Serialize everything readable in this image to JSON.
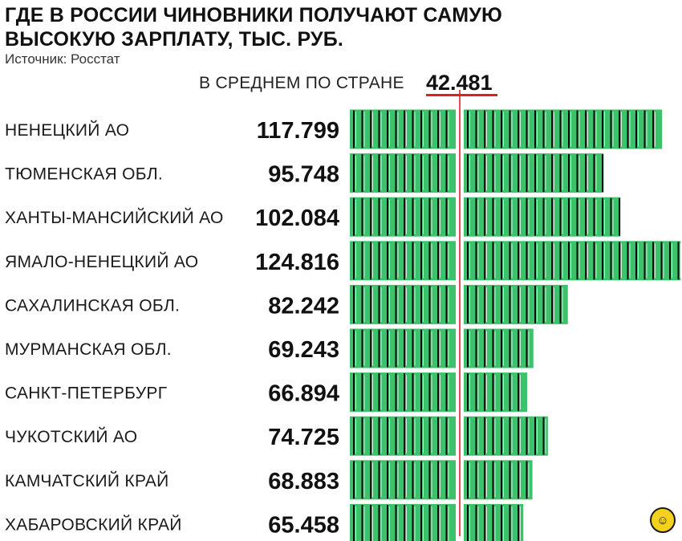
{
  "header": {
    "title": "ГДЕ В РОССИИ ЧИНОВНИКИ ПОЛУЧАЮТ САМУЮ ВЫСОКУЮ ЗАРПЛАТУ, ТЫС. РУБ.",
    "source": "Источник: Росстат"
  },
  "average": {
    "label": "В СРЕДНЕМ ПО СТРАНЕ",
    "value": "42.481"
  },
  "colors": {
    "bar": "#3cc26a",
    "bar_stripe": "#0a0a0a",
    "average_line": "#e02020",
    "text": "#111111"
  },
  "logo_icon": "coin-logo-icon",
  "chart_data": {
    "type": "bar",
    "orientation": "horizontal",
    "title": "ГДЕ В РОССИИ ЧИНОВНИКИ ПОЛУЧАЮТ САМУЮ ВЫСОКУЮ ЗАРПЛАТУ, ТЫС. РУБ.",
    "categories": [
      "НЕНЕЦКИЙ АО",
      "ТЮМЕНСКАЯ ОБЛ.",
      "ХАНТЫ-МАНСИЙСКИЙ АО",
      "ЯМАЛО-НЕНЕЦКИЙ АО",
      "САХАЛИНСКАЯ ОБЛ.",
      "МУРМАНСКАЯ ОБЛ.",
      "САНКТ-ПЕТЕРБУРГ",
      "ЧУКОТСКИЙ АО",
      "КАМЧАТСКИЙ КРАЙ",
      "ХАБАРОВСКИЙ КРАЙ"
    ],
    "value_labels": [
      "117.799",
      "95.748",
      "102.084",
      "124.816",
      "82.242",
      "69.243",
      "66.894",
      "74.725",
      "68.883",
      "65.458"
    ],
    "values": [
      117.799,
      95.748,
      102.084,
      124.816,
      82.242,
      69.243,
      66.894,
      74.725,
      68.883,
      65.458
    ],
    "reference_line": {
      "value": 42.481,
      "label": "В СРЕДНЕМ ПО СТРАНЕ"
    },
    "grid": false,
    "legend": "none"
  }
}
